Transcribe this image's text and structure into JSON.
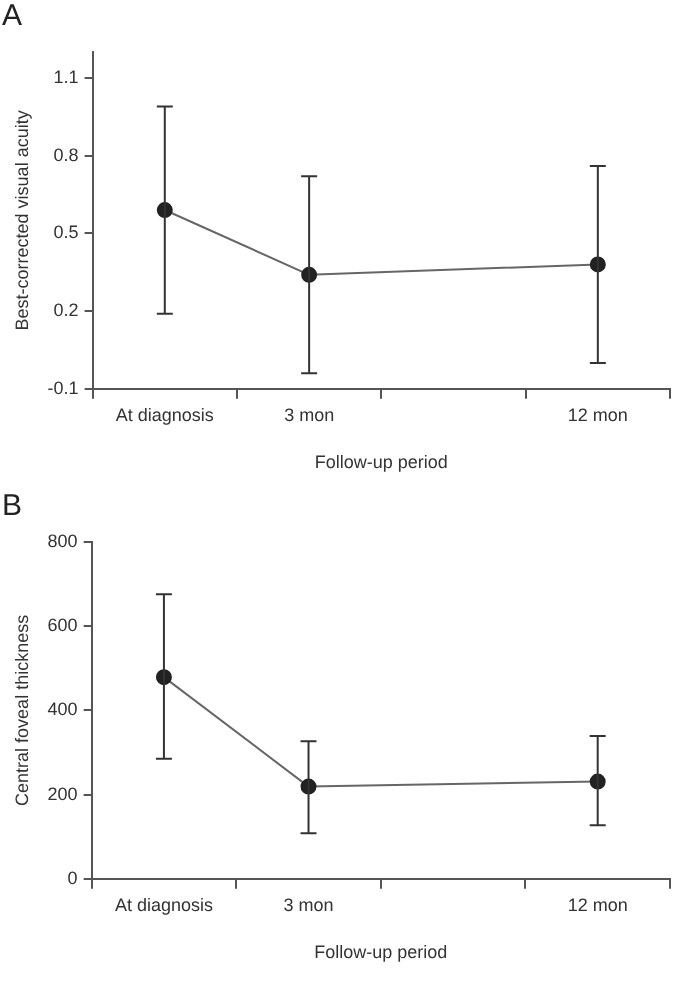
{
  "chart_data": [
    {
      "type": "line",
      "title": "A",
      "xlabel": "Follow-up period",
      "ylabel": "Best-corrected visual acuity",
      "categories": [
        "At diagnosis",
        "3 mon",
        null,
        "12 mon"
      ],
      "series": [
        {
          "color": "#222222",
          "values": [
            0.59,
            0.34,
            null,
            0.38
          ],
          "errors": [
            [
              0.19,
              0.99
            ],
            [
              -0.04,
              0.72
            ],
            null,
            [
              0.0,
              0.76
            ]
          ]
        }
      ],
      "ylim": [
        -0.1,
        1.2
      ],
      "yticks": [
        -0.1,
        0.2,
        0.5,
        0.8,
        1.1
      ],
      "grid": false,
      "legend": false,
      "marker": "circle",
      "line_style": "solid"
    },
    {
      "type": "line",
      "title": "B",
      "xlabel": "Follow-up period",
      "ylabel": "Central foveal thickness",
      "categories": [
        "At diagnosis",
        "3 mon",
        null,
        "12 mon"
      ],
      "series": [
        {
          "color": "#222222",
          "values": [
            479,
            219,
            null,
            231
          ],
          "errors": [
            [
              285,
              676
            ],
            [
              108,
              327
            ],
            null,
            [
              127,
              339
            ]
          ]
        }
      ],
      "ylim": [
        0,
        800
      ],
      "yticks": [
        0,
        200,
        400,
        600,
        800
      ],
      "grid": false,
      "legend": false,
      "marker": "circle",
      "line_style": "solid"
    }
  ]
}
